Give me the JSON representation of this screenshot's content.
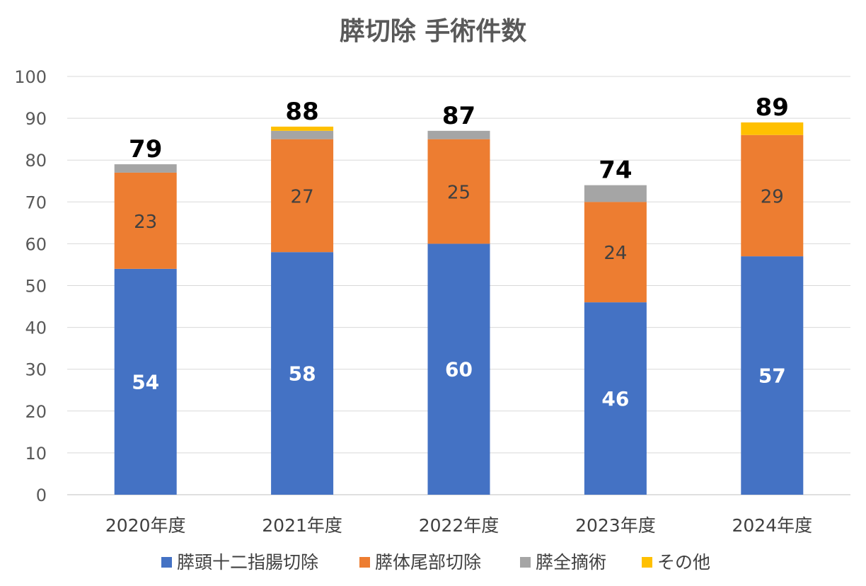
{
  "chart_data": {
    "type": "bar",
    "stacked": true,
    "title": "膵切除 手術件数",
    "xlabel": "",
    "ylabel": "",
    "ylim": [
      0,
      100
    ],
    "yticks": [
      0,
      10,
      20,
      30,
      40,
      50,
      60,
      70,
      80,
      90,
      100
    ],
    "grid": true,
    "legend_position": "bottom",
    "categories": [
      "2020年度",
      "2021年度",
      "2022年度",
      "2023年度",
      "2024年度"
    ],
    "series": [
      {
        "name": "膵頭十二指腸切除",
        "color": "#4472C4",
        "values": [
          54,
          58,
          60,
          46,
          57
        ],
        "labels": [
          "54",
          "58",
          "60",
          "46",
          "57"
        ]
      },
      {
        "name": "膵体尾部切除",
        "color": "#ED7D31",
        "values": [
          23,
          27,
          25,
          24,
          29
        ],
        "labels": [
          "23",
          "27",
          "25",
          "24",
          "29"
        ]
      },
      {
        "name": "膵全摘術",
        "color": "#A5A5A5",
        "values": [
          2,
          2,
          2,
          4,
          0
        ],
        "labels": [
          "",
          "",
          "",
          "",
          ""
        ]
      },
      {
        "name": "その他",
        "color": "#FFC000",
        "values": [
          0,
          1,
          0,
          0,
          3
        ],
        "labels": [
          "",
          "",
          "",
          "",
          ""
        ]
      }
    ],
    "totals": [
      "79",
      "88",
      "87",
      "74",
      "89"
    ]
  }
}
